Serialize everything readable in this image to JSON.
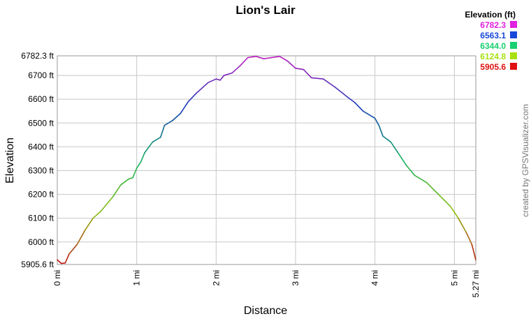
{
  "chart_data": {
    "type": "line",
    "title": "Lion's Lair",
    "x_label": "Distance",
    "y_label": "Elevation",
    "legend_title": "Elevation (ft)",
    "color_scale": [
      {
        "value": 6782.3,
        "color": "#e020e0"
      },
      {
        "value": 6563.1,
        "color": "#1848d8"
      },
      {
        "value": 6344.0,
        "label": "6344.0",
        "color": "#18d070"
      },
      {
        "value": 6124.8,
        "color": "#a8e010"
      },
      {
        "value": 5905.6,
        "color": "#e01010"
      }
    ],
    "credit": "created by GPSVisualizer.com",
    "x": [
      0,
      0.05,
      0.1,
      0.15,
      0.25,
      0.35,
      0.45,
      0.55,
      0.7,
      0.8,
      0.9,
      0.95,
      1.0,
      1.05,
      1.1,
      1.2,
      1.3,
      1.35,
      1.45,
      1.55,
      1.65,
      1.75,
      1.9,
      2.0,
      2.05,
      2.1,
      2.2,
      2.3,
      2.4,
      2.5,
      2.6,
      2.7,
      2.8,
      2.9,
      3.0,
      3.1,
      3.2,
      3.35,
      3.5,
      3.65,
      3.75,
      3.85,
      4.0,
      4.05,
      4.1,
      4.2,
      4.3,
      4.4,
      4.5,
      4.65,
      4.8,
      4.95,
      5.05,
      5.15,
      5.22,
      5.27
    ],
    "values": [
      5925,
      5910,
      5912,
      5950,
      5990,
      6050,
      6100,
      6130,
      6190,
      6240,
      6265,
      6270,
      6310,
      6335,
      6375,
      6420,
      6440,
      6490,
      6510,
      6540,
      6590,
      6625,
      6670,
      6685,
      6680,
      6700,
      6710,
      6740,
      6775,
      6780,
      6770,
      6775,
      6780,
      6760,
      6730,
      6725,
      6690,
      6685,
      6650,
      6610,
      6585,
      6550,
      6520,
      6490,
      6445,
      6420,
      6370,
      6320,
      6280,
      6250,
      6200,
      6150,
      6100,
      6040,
      5990,
      5925
    ],
    "xlim": [
      0,
      5.27
    ],
    "xticks": [
      {
        "value": 0,
        "label": "0 mi"
      },
      {
        "value": 1,
        "label": "1 mi"
      },
      {
        "value": 2,
        "label": "2 mi"
      },
      {
        "value": 3,
        "label": "3 mi"
      },
      {
        "value": 4,
        "label": "4 mi"
      },
      {
        "value": 5,
        "label": "5 mi"
      },
      {
        "value": 5.27,
        "label": "5.27 mi"
      }
    ],
    "ylim": [
      5905.6,
      6782.3
    ],
    "yticks": [
      {
        "value": 5905.6,
        "label": "5905.6 ft"
      },
      {
        "value": 6000,
        "label": "6000 ft"
      },
      {
        "value": 6100,
        "label": "6100 ft"
      },
      {
        "value": 6200,
        "label": "6200 ft"
      },
      {
        "value": 6300,
        "label": "6300 ft"
      },
      {
        "value": 6400,
        "label": "6400 ft"
      },
      {
        "value": 6500,
        "label": "6500 ft"
      },
      {
        "value": 6600,
        "label": "6600 ft"
      },
      {
        "value": 6700,
        "label": "6700 ft"
      },
      {
        "value": 6782.3,
        "label": "6782.3 ft"
      }
    ],
    "grid": true
  }
}
